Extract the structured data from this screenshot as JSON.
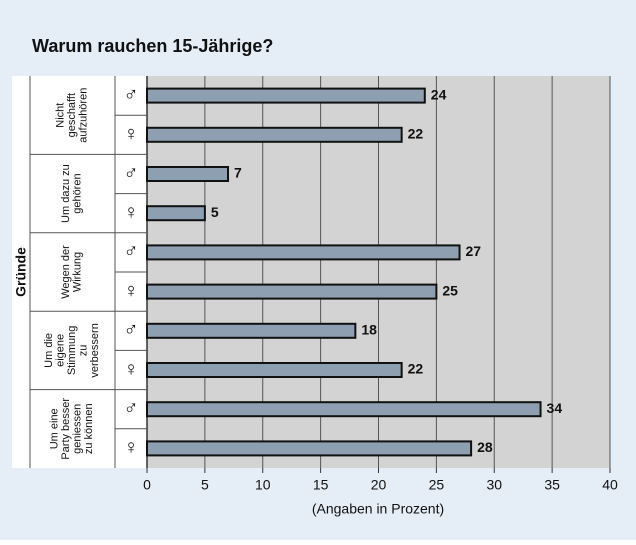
{
  "chart_data": {
    "type": "bar",
    "orientation": "horizontal",
    "title": "Warum rauchen 15-Jährige?",
    "x_label": "(Angaben in Prozent)",
    "y_label": "Gründe",
    "categories": [
      [
        "Nicht",
        "geschafft",
        "aufzuhören"
      ],
      [
        "Um dazu zu",
        "gehören"
      ],
      [
        "Wegen der",
        "Wirkung"
      ],
      [
        "Um die",
        "eigene",
        "Stimmung",
        "zu",
        "verbessern"
      ],
      [
        "Um eine",
        "Party besser",
        "geniessen",
        "zu können"
      ]
    ],
    "series": [
      {
        "name": "♂",
        "color": "#8d9fb1",
        "values": [
          24,
          7,
          27,
          18,
          34
        ]
      },
      {
        "name": "♀",
        "color": "#8d9fb1",
        "values": [
          22,
          5,
          25,
          22,
          28
        ]
      }
    ],
    "xlim": [
      0,
      40
    ],
    "xticks": [
      0,
      5,
      10,
      15,
      20,
      25,
      30,
      35,
      40
    ],
    "grid": true
  }
}
